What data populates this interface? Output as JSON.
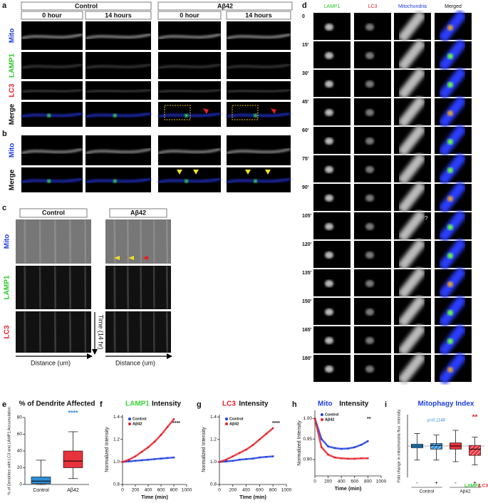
{
  "panels": {
    "a": {
      "letter": "a",
      "groups": [
        "Control",
        "Aβ42"
      ],
      "times": [
        "0 hour",
        "14 hours",
        "0 hour",
        "14 hours"
      ],
      "rows": [
        "Mito",
        "LAMP1",
        "LC3",
        "Merge"
      ]
    },
    "b": {
      "letter": "b",
      "rows": [
        "Mito",
        "Merge"
      ]
    },
    "c": {
      "letter": "c",
      "groups": [
        "Control",
        "Aβ42"
      ],
      "rows": [
        "Mito",
        "LAMP1",
        "LC3"
      ],
      "time_axis": "Time (14 hr)",
      "distance_axis": "Distance (um)"
    },
    "d": {
      "letter": "d",
      "columns": [
        "LAMP1",
        "LC3",
        "Mitochondria",
        "Merged"
      ],
      "times": [
        "0",
        "15'",
        "30'",
        "45'",
        "60'",
        "75'",
        "90'",
        "105'",
        "120'",
        "135'",
        "150'",
        "165'",
        "180'"
      ],
      "annotation": "?"
    }
  },
  "chart_data": [
    {
      "type": "box",
      "panel": "e",
      "title": "% of Dendrite Affected",
      "y_label": "% of Dendrites with LC3 and LAMP1 Accumulation",
      "categories": [
        "Control",
        "Aβ42"
      ],
      "boxes": [
        {
          "color": "#2f8fd8",
          "min": 0,
          "q1": 1,
          "median": 4,
          "q3": 9,
          "max": 29
        },
        {
          "color": "#e8323c",
          "min": 7,
          "q1": 20,
          "median": 28,
          "q3": 40,
          "max": 63
        }
      ],
      "ylim": [
        0,
        80
      ],
      "yticks": [
        0,
        20,
        40,
        60,
        80
      ],
      "annotation": "****"
    },
    {
      "type": "line",
      "panel": "f",
      "title": [
        "LAMP1",
        "Intensity"
      ],
      "title_color": "#3bd43b",
      "x_label": "Time (min)",
      "y_label": "Normalized Intensity",
      "x": [
        0,
        100,
        200,
        300,
        400,
        500,
        600,
        700,
        800
      ],
      "series": [
        {
          "name": "Control",
          "color": "#1f3fe0",
          "values": [
            1.0,
            1.005,
            1.01,
            1.015,
            1.02,
            1.025,
            1.03,
            1.035,
            1.04
          ]
        },
        {
          "name": "Aβ42",
          "color": "#e8202a",
          "values": [
            1.0,
            1.02,
            1.05,
            1.09,
            1.13,
            1.18,
            1.24,
            1.31,
            1.38
          ]
        }
      ],
      "xlim": [
        0,
        1000
      ],
      "xticks": [
        0,
        200,
        400,
        600,
        800,
        1000
      ],
      "ylim": [
        0.8,
        1.42
      ],
      "yticks": [
        0.8,
        {
          "value": 1,
          "label": "1.0"
        },
        1.2,
        1.4
      ],
      "annotation": "****"
    },
    {
      "type": "line",
      "panel": "g",
      "title": [
        "LC3",
        "Intensity"
      ],
      "title_color": "#e8202a",
      "x_label": "Time (min)",
      "y_label": "Normalized Intensity",
      "x": [
        0,
        100,
        200,
        300,
        400,
        500,
        600,
        700,
        800
      ],
      "series": [
        {
          "name": "Control",
          "color": "#1f3fe0",
          "values": [
            1.0,
            1.005,
            1.01,
            1.02,
            1.025,
            1.03,
            1.04,
            1.045,
            1.05
          ]
        },
        {
          "name": "Aβ42",
          "color": "#e8202a",
          "values": [
            1.0,
            1.02,
            1.05,
            1.08,
            1.11,
            1.15,
            1.2,
            1.25,
            1.3
          ]
        }
      ],
      "xlim": [
        0,
        1000
      ],
      "xticks": [
        0,
        200,
        400,
        600,
        800,
        1000
      ],
      "ylim": [
        0.8,
        1.42
      ],
      "yticks": [
        0.8,
        {
          "value": 1,
          "label": "1.0"
        },
        1.2,
        1.4
      ],
      "annotation": "****"
    },
    {
      "type": "line",
      "panel": "h",
      "title": [
        "Mito",
        "Intensity"
      ],
      "title_color": "#1f3fe0",
      "x_label": "Time (min)",
      "y_label": "Normalized Intensity",
      "x": [
        0,
        100,
        200,
        300,
        400,
        500,
        600,
        700,
        800
      ],
      "series": [
        {
          "name": "Control",
          "color": "#1f3fe0",
          "values": [
            1.0,
            0.95,
            0.932,
            0.928,
            0.926,
            0.927,
            0.93,
            0.936,
            0.945
          ]
        },
        {
          "name": "Aβ42",
          "color": "#e8202a",
          "values": [
            1.0,
            0.93,
            0.912,
            0.905,
            0.903,
            0.902,
            0.902,
            0.903,
            0.903
          ]
        }
      ],
      "xlim": [
        0,
        1000
      ],
      "xticks": [
        0,
        200,
        400,
        600,
        800,
        1000
      ],
      "ylim": [
        0.86,
        1.02
      ],
      "yticks": [
        {
          "value": 0.9,
          "label": "0.90"
        },
        0.95,
        {
          "value": 1,
          "label": "1.00"
        }
      ],
      "annotation": "**"
    },
    {
      "type": "box",
      "panel": "i",
      "title": "Mitophagy Index",
      "y_label": "Fold change in mitochondria fluo. intensity",
      "categories": [
        "-",
        "+",
        "-",
        "+"
      ],
      "groups": [
        "Control",
        "Aβ42"
      ],
      "boxes": [
        {
          "color": "#2f8fd8",
          "min": -0.45,
          "q1": -0.06,
          "median": 0,
          "q3": 0.06,
          "max": 0.4
        },
        {
          "color": "#2f8fd8",
          "hatch": true,
          "min": -0.45,
          "q1": -0.1,
          "median": 0.02,
          "q3": 0.08,
          "max": 0.35
        },
        {
          "color": "#e8323c",
          "min": -0.5,
          "q1": -0.1,
          "median": 0,
          "q3": 0.1,
          "max": 0.5
        },
        {
          "color": "#e8323c",
          "hatch": true,
          "min": -0.6,
          "q1": -0.3,
          "median": -0.1,
          "q3": 0.02,
          "max": 0.28
        }
      ],
      "ylim": [
        -1,
        1
      ],
      "annotations": [
        "p=0.1148",
        "**"
      ],
      "legend": [
        "LAMP1",
        "/LC3"
      ]
    }
  ]
}
